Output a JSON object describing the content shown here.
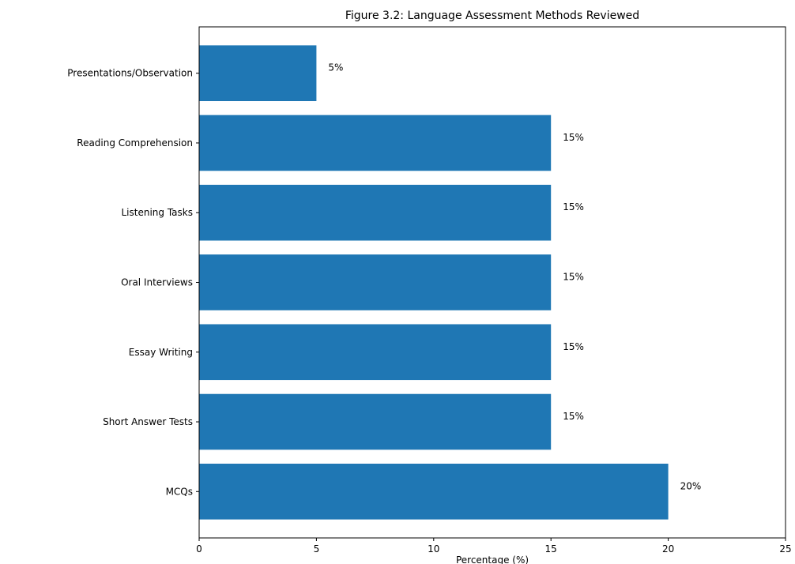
{
  "chart_data": {
    "type": "bar",
    "orientation": "horizontal",
    "title": "Figure 3.2: Language Assessment Methods Reviewed",
    "xlabel": "Percentage (%)",
    "ylabel": "",
    "categories": [
      "MCQs",
      "Short Answer Tests",
      "Essay Writing",
      "Oral Interviews",
      "Listening Tasks",
      "Reading Comprehension",
      "Presentations/Observation"
    ],
    "values": [
      20,
      15,
      15,
      15,
      15,
      15,
      5
    ],
    "data_labels": [
      "20%",
      "15%",
      "15%",
      "15%",
      "15%",
      "15%",
      "5%"
    ],
    "xlim": [
      0,
      25
    ],
    "xticks": [
      0,
      5,
      10,
      15,
      20,
      25
    ],
    "grid": false,
    "legend": "none",
    "bar_color": "#1f77b4"
  }
}
